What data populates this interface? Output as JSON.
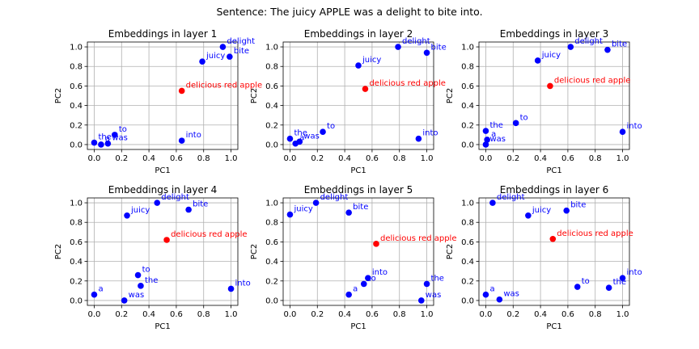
{
  "suptitle": "Sentence: The juicy APPLE was a delight to bite into.",
  "colors": {
    "word": "#0000ff",
    "target": "#ff0000",
    "grid": "#b0b0b0",
    "axis": "#000000"
  },
  "chart_data": [
    {
      "type": "scatter",
      "title": "Embeddings in layer 1",
      "xlabel": "PC1",
      "ylabel": "PC2",
      "xlim": [
        -0.05,
        1.05
      ],
      "ylim": [
        -0.05,
        1.05
      ],
      "xticks": [
        "0.0",
        "0.2",
        "0.4",
        "0.6",
        "0.8",
        "1.0"
      ],
      "yticks": [
        "0.0",
        "0.2",
        "0.4",
        "0.6",
        "0.8",
        "1.0"
      ],
      "grid": true,
      "points": [
        {
          "label": "the",
          "x": 0.0,
          "y": 0.02,
          "target": false
        },
        {
          "label": "a",
          "x": 0.05,
          "y": 0.0,
          "target": false
        },
        {
          "label": "was",
          "x": 0.1,
          "y": 0.01,
          "target": false
        },
        {
          "label": "to",
          "x": 0.15,
          "y": 0.1,
          "target": false
        },
        {
          "label": "delicious red apple",
          "x": 0.64,
          "y": 0.55,
          "target": true
        },
        {
          "label": "into",
          "x": 0.64,
          "y": 0.04,
          "target": false
        },
        {
          "label": "juicy",
          "x": 0.79,
          "y": 0.85,
          "target": false
        },
        {
          "label": "delight",
          "x": 0.94,
          "y": 1.0,
          "target": false
        },
        {
          "label": "bite",
          "x": 0.99,
          "y": 0.9,
          "target": false
        }
      ]
    },
    {
      "type": "scatter",
      "title": "Embeddings in layer 2",
      "xlabel": "PC1",
      "ylabel": "PC2",
      "xlim": [
        -0.05,
        1.05
      ],
      "ylim": [
        -0.05,
        1.05
      ],
      "xticks": [
        "0.0",
        "0.2",
        "0.4",
        "0.6",
        "0.8",
        "1.0"
      ],
      "yticks": [
        "0.0",
        "0.2",
        "0.4",
        "0.6",
        "0.8",
        "1.0"
      ],
      "grid": true,
      "points": [
        {
          "label": "the",
          "x": 0.0,
          "y": 0.06,
          "target": false
        },
        {
          "label": "a",
          "x": 0.04,
          "y": 0.01,
          "target": false
        },
        {
          "label": "was",
          "x": 0.07,
          "y": 0.03,
          "target": false
        },
        {
          "label": "to",
          "x": 0.24,
          "y": 0.13,
          "target": false
        },
        {
          "label": "juicy",
          "x": 0.5,
          "y": 0.81,
          "target": false
        },
        {
          "label": "delicious red apple",
          "x": 0.55,
          "y": 0.57,
          "target": true
        },
        {
          "label": "delight",
          "x": 0.79,
          "y": 1.0,
          "target": false
        },
        {
          "label": "into",
          "x": 0.94,
          "y": 0.06,
          "target": false
        },
        {
          "label": "bite",
          "x": 1.0,
          "y": 0.94,
          "target": false
        }
      ]
    },
    {
      "type": "scatter",
      "title": "Embeddings in layer 3",
      "xlabel": "PC1",
      "ylabel": "PC2",
      "xlim": [
        -0.05,
        1.05
      ],
      "ylim": [
        -0.05,
        1.05
      ],
      "xticks": [
        "0.0",
        "0.2",
        "0.4",
        "0.6",
        "0.8",
        "1.0"
      ],
      "yticks": [
        "0.0",
        "0.2",
        "0.4",
        "0.6",
        "0.8",
        "1.0"
      ],
      "grid": true,
      "points": [
        {
          "label": "the",
          "x": 0.0,
          "y": 0.14,
          "target": false
        },
        {
          "label": "a",
          "x": 0.01,
          "y": 0.05,
          "target": false
        },
        {
          "label": "was",
          "x": 0.0,
          "y": 0.0,
          "target": false
        },
        {
          "label": "to",
          "x": 0.22,
          "y": 0.22,
          "target": false
        },
        {
          "label": "juicy",
          "x": 0.38,
          "y": 0.86,
          "target": false
        },
        {
          "label": "delicious red apple",
          "x": 0.47,
          "y": 0.6,
          "target": true
        },
        {
          "label": "delight",
          "x": 0.62,
          "y": 1.0,
          "target": false
        },
        {
          "label": "bite",
          "x": 0.89,
          "y": 0.97,
          "target": false
        },
        {
          "label": "into",
          "x": 1.0,
          "y": 0.13,
          "target": false
        }
      ]
    },
    {
      "type": "scatter",
      "title": "Embeddings in layer 4",
      "xlabel": "PC1",
      "ylabel": "PC2",
      "xlim": [
        -0.05,
        1.05
      ],
      "ylim": [
        -0.05,
        1.05
      ],
      "xticks": [
        "0.0",
        "0.2",
        "0.4",
        "0.6",
        "0.8",
        "1.0"
      ],
      "yticks": [
        "0.0",
        "0.2",
        "0.4",
        "0.6",
        "0.8",
        "1.0"
      ],
      "grid": true,
      "points": [
        {
          "label": "a",
          "x": 0.0,
          "y": 0.06,
          "target": false
        },
        {
          "label": "was",
          "x": 0.22,
          "y": 0.0,
          "target": false
        },
        {
          "label": "juicy",
          "x": 0.24,
          "y": 0.87,
          "target": false
        },
        {
          "label": "to",
          "x": 0.32,
          "y": 0.26,
          "target": false
        },
        {
          "label": "the",
          "x": 0.34,
          "y": 0.15,
          "target": false
        },
        {
          "label": "delight",
          "x": 0.46,
          "y": 1.0,
          "target": false
        },
        {
          "label": "delicious red apple",
          "x": 0.53,
          "y": 0.62,
          "target": true
        },
        {
          "label": "bite",
          "x": 0.69,
          "y": 0.93,
          "target": false
        },
        {
          "label": "into",
          "x": 1.0,
          "y": 0.12,
          "target": false
        }
      ]
    },
    {
      "type": "scatter",
      "title": "Embeddings in layer 5",
      "xlabel": "PC1",
      "ylabel": "PC2",
      "xlim": [
        -0.05,
        1.05
      ],
      "ylim": [
        -0.05,
        1.05
      ],
      "xticks": [
        "0.0",
        "0.2",
        "0.4",
        "0.6",
        "0.8",
        "1.0"
      ],
      "yticks": [
        "0.0",
        "0.2",
        "0.4",
        "0.6",
        "0.8",
        "1.0"
      ],
      "grid": true,
      "points": [
        {
          "label": "juicy",
          "x": 0.0,
          "y": 0.88,
          "target": false
        },
        {
          "label": "delight",
          "x": 0.19,
          "y": 1.0,
          "target": false
        },
        {
          "label": "bite",
          "x": 0.43,
          "y": 0.9,
          "target": false
        },
        {
          "label": "a",
          "x": 0.43,
          "y": 0.06,
          "target": false
        },
        {
          "label": "to",
          "x": 0.54,
          "y": 0.17,
          "target": false
        },
        {
          "label": "into",
          "x": 0.57,
          "y": 0.23,
          "target": false
        },
        {
          "label": "delicious red apple",
          "x": 0.63,
          "y": 0.58,
          "target": true
        },
        {
          "label": "the",
          "x": 1.0,
          "y": 0.17,
          "target": false
        },
        {
          "label": "was",
          "x": 0.96,
          "y": 0.0,
          "target": false
        }
      ]
    },
    {
      "type": "scatter",
      "title": "Embeddings in layer 6",
      "xlabel": "PC1",
      "ylabel": "PC2",
      "xlim": [
        -0.05,
        1.05
      ],
      "ylim": [
        -0.05,
        1.05
      ],
      "xticks": [
        "0.0",
        "0.2",
        "0.4",
        "0.6",
        "0.8",
        "1.0"
      ],
      "yticks": [
        "0.0",
        "0.2",
        "0.4",
        "0.6",
        "0.8",
        "1.0"
      ],
      "grid": true,
      "points": [
        {
          "label": "a",
          "x": 0.0,
          "y": 0.06,
          "target": false
        },
        {
          "label": "delight",
          "x": 0.05,
          "y": 1.0,
          "target": false
        },
        {
          "label": "was",
          "x": 0.1,
          "y": 0.01,
          "target": false
        },
        {
          "label": "juicy",
          "x": 0.31,
          "y": 0.87,
          "target": false
        },
        {
          "label": "delicious red apple",
          "x": 0.49,
          "y": 0.63,
          "target": true
        },
        {
          "label": "bite",
          "x": 0.59,
          "y": 0.92,
          "target": false
        },
        {
          "label": "to",
          "x": 0.67,
          "y": 0.14,
          "target": false
        },
        {
          "label": "the",
          "x": 0.9,
          "y": 0.13,
          "target": false
        },
        {
          "label": "into",
          "x": 1.0,
          "y": 0.23,
          "target": false
        }
      ]
    }
  ]
}
